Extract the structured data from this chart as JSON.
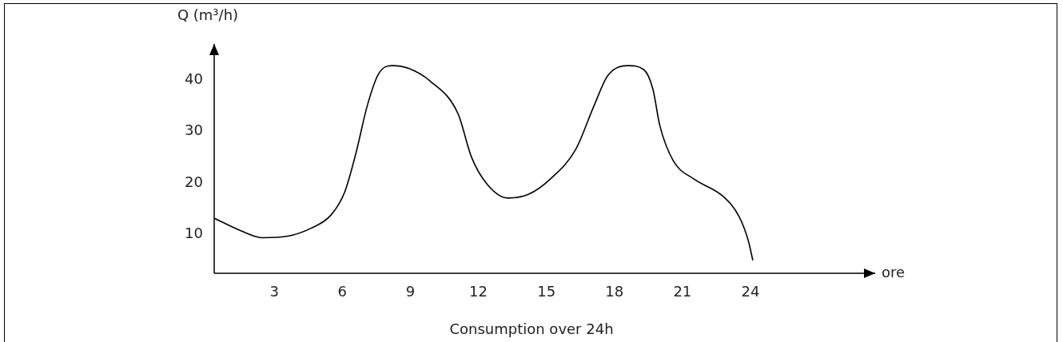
{
  "chart_data": {
    "type": "line",
    "title": "Consumption over 24h",
    "xlabel": "ore",
    "ylabel": "Q (m³/h)",
    "x": [
      0.35,
      1.5,
      2.5,
      3.6,
      4.6,
      5.5,
      6.1,
      6.6,
      7.1,
      7.6,
      8.2,
      8.9,
      9.9,
      11.1,
      11.7,
      12.4,
      13.3,
      14.2,
      15.2,
      16.3,
      17.1,
      17.7,
      18.6,
      19.3,
      19.7,
      20,
      20.6,
      21.5,
      22.8,
      23.5,
      23.9,
      24.1
    ],
    "series": [
      {
        "color": "#000000",
        "values": [
          13.2,
          10.8,
          9.4,
          9.7,
          11.2,
          13.8,
          18.2,
          25.8,
          35,
          41.2,
          42.8,
          42.3,
          39.7,
          33.5,
          25,
          19.7,
          17.1,
          17.8,
          20.9,
          26.6,
          35,
          40.8,
          42.8,
          42,
          38.2,
          31.2,
          24.3,
          20.8,
          17.4,
          13.5,
          8.9,
          5.1
        ]
      }
    ],
    "xlim": [
      0.35,
      29.5
    ],
    "xticks": [
      3,
      6,
      9,
      12,
      15,
      18,
      21,
      24
    ],
    "ylim": [
      2.5,
      47
    ],
    "yticks": [
      10,
      20,
      30,
      40
    ],
    "grid": false,
    "legend": false,
    "marker": "none",
    "line_style": "solid"
  }
}
